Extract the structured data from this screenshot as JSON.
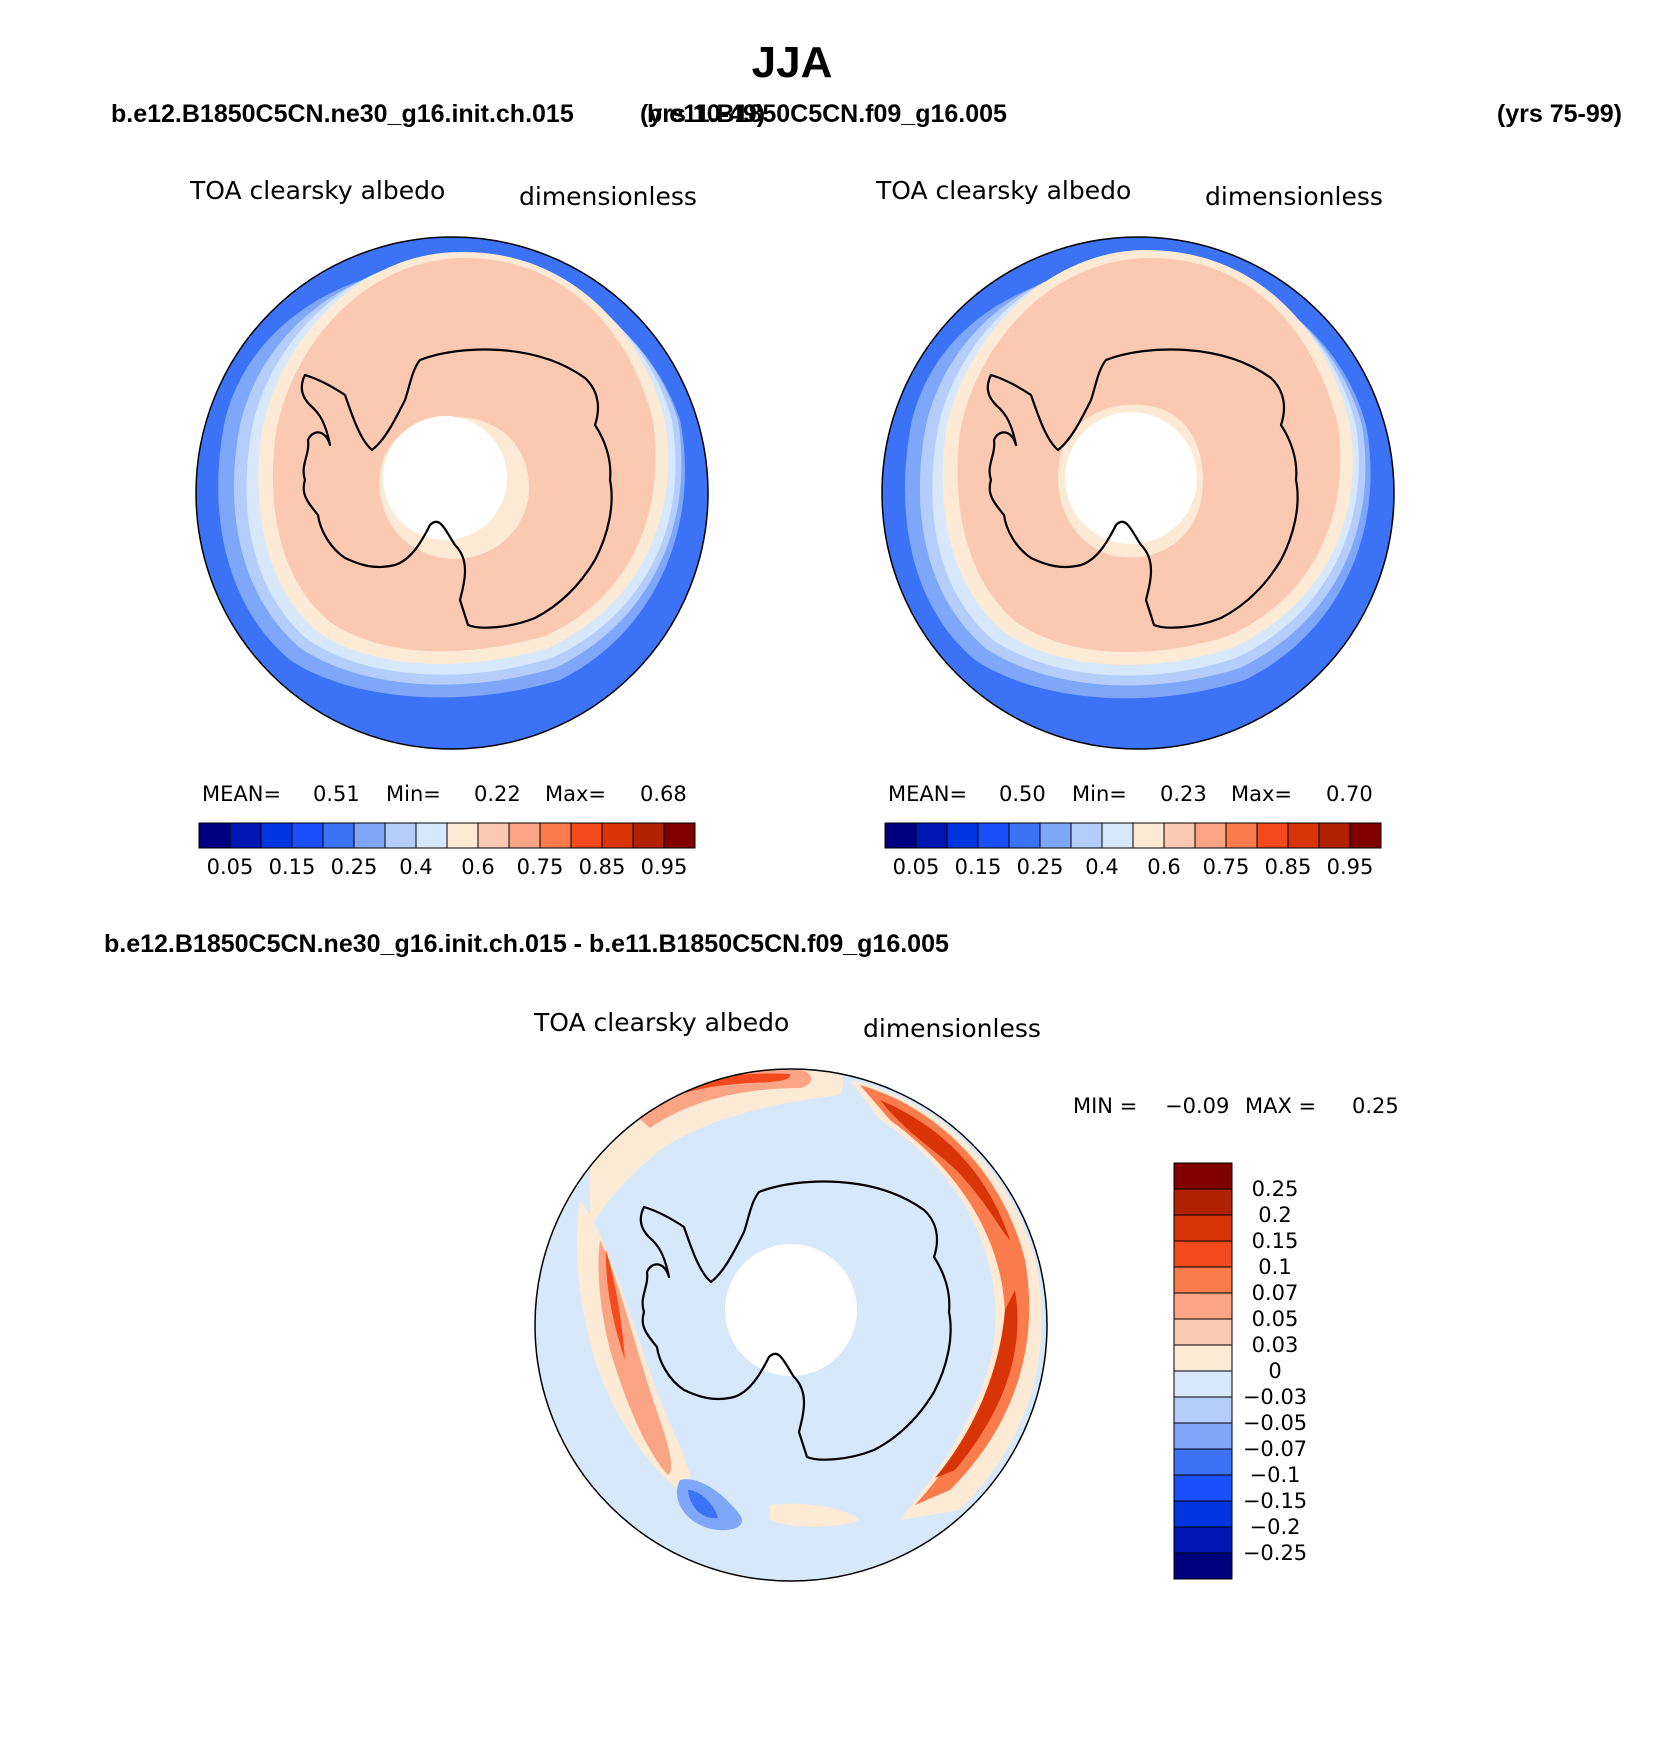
{
  "figure_title": "JJA",
  "colors": {
    "scale": [
      "#00007f",
      "#0017b4",
      "#0035df",
      "#1b4ffb",
      "#3c73f6",
      "#7ea6f9",
      "#b4cdfb",
      "#d7e8fb",
      "#fdead5",
      "#fbc9b1",
      "#f9a585",
      "#fa7b4c",
      "#f44a1d",
      "#d93407",
      "#b12203",
      "#800000"
    ],
    "coast": "#000000"
  },
  "panels": [
    {
      "id": "case",
      "case_name": "b.e12.B1850C5CN.ne30_g16.init.ch.015",
      "years": "(yrs 10-49)",
      "var_title": "TOA clearsky albedo",
      "units": "dimensionless",
      "stats": {
        "mean_label": "MEAN=",
        "mean": "0.51",
        "min_label": "Min=",
        "min": "0.22",
        "max_label": "Max=",
        "max": "0.68"
      },
      "colorbar_labels": [
        "0.05",
        "0.15",
        "0.25",
        "0.4",
        "0.6",
        "0.75",
        "0.85",
        "0.95"
      ]
    },
    {
      "id": "control",
      "case_name": "b.e11.B1850C5CN.f09_g16.005",
      "years": "(yrs 75-99)",
      "var_title": "TOA clearsky albedo",
      "units": "dimensionless",
      "stats": {
        "mean_label": "MEAN=",
        "mean": "0.50",
        "min_label": "Min=",
        "min": "0.23",
        "max_label": "Max=",
        "max": "0.70"
      },
      "colorbar_labels": [
        "0.05",
        "0.15",
        "0.25",
        "0.4",
        "0.6",
        "0.75",
        "0.85",
        "0.95"
      ]
    },
    {
      "id": "difference",
      "case_name": "b.e12.B1850C5CN.ne30_g16.init.ch.015 - b.e11.B1850C5CN.f09_g16.005",
      "var_title": "TOA clearsky albedo",
      "units": "dimensionless",
      "stats": {
        "min_label": "MIN =",
        "min": "−0.09",
        "max_label": "MAX =",
        "max": "0.25"
      },
      "colorbar_labels": [
        "0.25",
        "0.2",
        "0.15",
        "0.1",
        "0.07",
        "0.05",
        "0.03",
        "0",
        "−0.03",
        "−0.05",
        "−0.07",
        "−0.1",
        "−0.15",
        "−0.2",
        "−0.25"
      ]
    }
  ],
  "chart_data": [
    {
      "type": "heatmap",
      "projection": "south polar stereographic",
      "title": "TOA clearsky albedo",
      "units": "dimensionless",
      "case": "b.e12.B1850C5CN.ne30_g16.init.ch.015",
      "years": "(yrs 10-49)",
      "mean": 0.51,
      "min": 0.22,
      "max": 0.68,
      "contour_levels": [
        0.05,
        0.1,
        0.15,
        0.2,
        0.25,
        0.3,
        0.4,
        0.5,
        0.6,
        0.7,
        0.75,
        0.8,
        0.85,
        0.9,
        0.95
      ],
      "rings_by_latitude": [
        {
          "lat": -40,
          "value": 0.28
        },
        {
          "lat": -45,
          "value": 0.32
        },
        {
          "lat": -48,
          "value": 0.36
        },
        {
          "lat": -51,
          "value": 0.45
        },
        {
          "lat": -53,
          "value": 0.55
        },
        {
          "lat": -56,
          "value": 0.62
        },
        {
          "lat": -80,
          "value": 0.55
        },
        {
          "lat": -84,
          "value": 0.45
        }
      ]
    },
    {
      "type": "heatmap",
      "projection": "south polar stereographic",
      "title": "TOA clearsky albedo",
      "units": "dimensionless",
      "case": "b.e11.B1850C5CN.f09_g16.005",
      "years": "(yrs 75-99)",
      "mean": 0.5,
      "min": 0.23,
      "max": 0.7,
      "contour_levels": [
        0.05,
        0.1,
        0.15,
        0.2,
        0.25,
        0.3,
        0.4,
        0.5,
        0.6,
        0.7,
        0.75,
        0.8,
        0.85,
        0.9,
        0.95
      ],
      "rings_by_latitude": [
        {
          "lat": -40,
          "value": 0.28
        },
        {
          "lat": -44,
          "value": 0.32
        },
        {
          "lat": -48,
          "value": 0.36
        },
        {
          "lat": -51,
          "value": 0.45
        },
        {
          "lat": -54,
          "value": 0.55
        },
        {
          "lat": -57,
          "value": 0.62
        },
        {
          "lat": -80,
          "value": 0.55
        }
      ]
    },
    {
      "type": "heatmap",
      "projection": "south polar stereographic",
      "title": "TOA clearsky albedo",
      "units": "dimensionless",
      "case": "b.e12.B1850C5CN.ne30_g16.init.ch.015 - b.e11.B1850C5CN.f09_g16.005",
      "min": -0.09,
      "max": 0.25,
      "contour_levels": [
        -0.25,
        -0.2,
        -0.15,
        -0.1,
        -0.07,
        -0.05,
        -0.03,
        0,
        0.03,
        0.05,
        0.07,
        0.1,
        0.15,
        0.2,
        0.25
      ],
      "background_value": -0.01,
      "features": [
        {
          "name": "indian-ocean-arc",
          "lon_range": [
            20,
            170
          ],
          "lat": -48,
          "peak_value": 0.25
        },
        {
          "name": "atlantic-arc",
          "lon_range": [
            -10,
            30
          ],
          "lat": -42,
          "peak_value": 0.1
        },
        {
          "name": "pacific-band",
          "lon_range": [
            -140,
            -95
          ],
          "lat": -58,
          "peak_value": 0.12
        },
        {
          "name": "southwest-pacific-patch",
          "lon": -150,
          "lat": -52,
          "peak_value": -0.09
        }
      ]
    }
  ]
}
